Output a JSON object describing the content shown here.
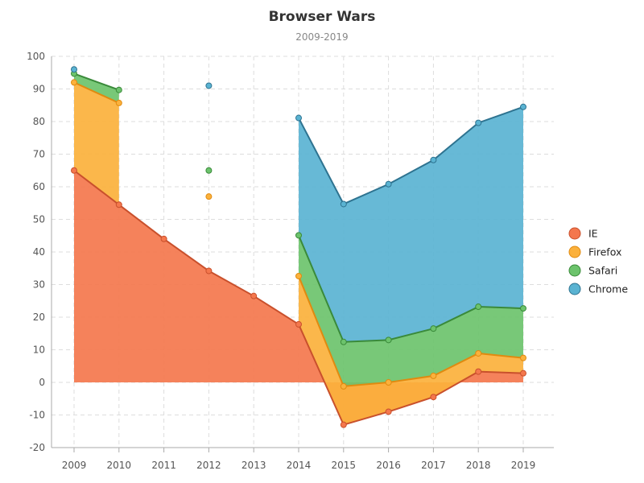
{
  "chart_data": {
    "type": "area",
    "title": "Browser Wars",
    "subtitle": "2009-2019",
    "xlabel": "",
    "ylabel": "",
    "categories": [
      "2009",
      "2010",
      "2011",
      "2012",
      "2013",
      "2014",
      "2015",
      "2016",
      "2017",
      "2018",
      "2019"
    ],
    "ylim": [
      -20,
      100
    ],
    "yticks": [
      -20,
      -10,
      0,
      10,
      20,
      30,
      40,
      50,
      60,
      70,
      80,
      90,
      100
    ],
    "grid": true,
    "stacked": true,
    "legend_position": "right",
    "series": [
      {
        "name": "IE",
        "color": "#f4774d",
        "stroke": "#c9502c",
        "values": [
          65,
          54.5,
          44,
          34.2,
          26.5,
          17.8,
          -13,
          -9,
          -4.5,
          3.3,
          2.8
        ]
      },
      {
        "name": "Firefox",
        "color": "#fbb13c",
        "stroke": "#e08a10",
        "values": [
          27,
          31.2,
          null,
          22.8,
          null,
          14.8,
          11.8,
          9,
          6.5,
          5.6,
          4.7
        ]
      },
      {
        "name": "Safari",
        "color": "#6cc36c",
        "stroke": "#3a8a3a",
        "values": [
          2.7,
          4,
          null,
          8,
          null,
          12.5,
          13.6,
          13,
          14.5,
          14.3,
          15.2
        ]
      },
      {
        "name": "Chrome",
        "color": "#5ab3d2",
        "stroke": "#2e7390",
        "values": [
          1.3,
          null,
          null,
          26,
          null,
          36,
          42.3,
          47.8,
          51.7,
          56.4,
          61.8
        ]
      }
    ]
  }
}
